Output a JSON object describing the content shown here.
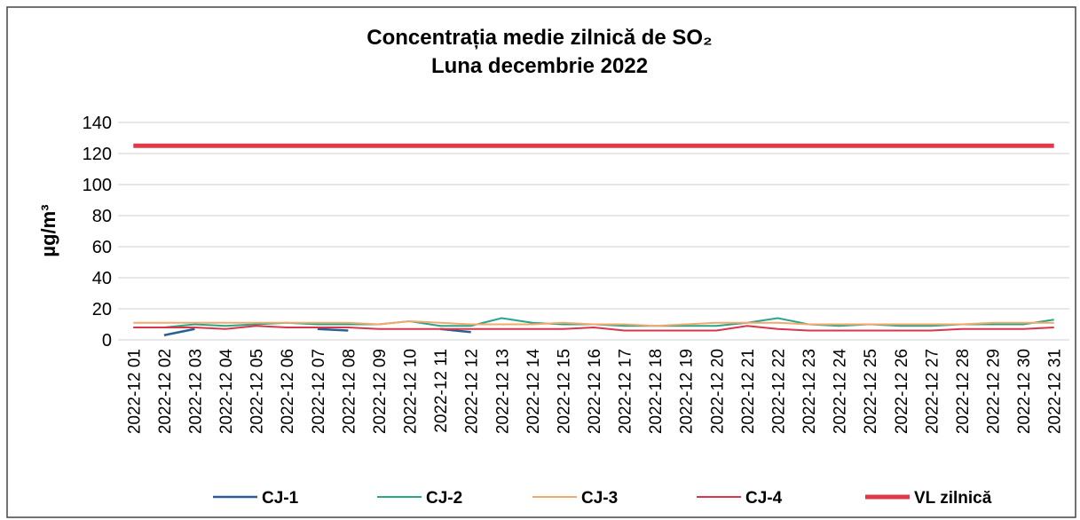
{
  "chart_data": {
    "type": "line",
    "title": "Concentrația medie zilnică de SO₂",
    "subtitle": "Luna decembrie 2022",
    "y_label": "µg/m³",
    "categories": [
      "2022-12 01",
      "2022-12 02",
      "2022-12 03",
      "2022-12 04",
      "2022-12 05",
      "2022-12 06",
      "2022-12 07",
      "2022-12 08",
      "2022-12 09",
      "2022-12 10",
      "2022-12 11",
      "2022-12 12",
      "2022-12 13",
      "2022-12 14",
      "2022-12 15",
      "2022-12 16",
      "2022-12 17",
      "2022-12 18",
      "2022-12 19",
      "2022-12 20",
      "2022-12 21",
      "2022-12 22",
      "2022-12 23",
      "2022-12 24",
      "2022-12 25",
      "2022-12 26",
      "2022-12 27",
      "2022-12 28",
      "2022-12 29",
      "2022-12 30",
      "2022-12 31"
    ],
    "series": [
      {
        "name": "CJ-1",
        "color": "#2a5f96",
        "width": 2.5,
        "values": [
          null,
          3,
          7,
          null,
          null,
          null,
          7,
          6,
          null,
          null,
          7,
          5,
          null,
          null,
          null,
          null,
          null,
          null,
          null,
          null,
          null,
          null,
          null,
          null,
          null,
          null,
          null,
          null,
          null,
          null,
          null
        ]
      },
      {
        "name": "CJ-2",
        "color": "#2aa58a",
        "width": 2,
        "values": [
          8,
          8,
          10,
          9,
          10,
          11,
          10,
          10,
          10,
          12,
          9,
          9,
          14,
          11,
          10,
          10,
          9,
          9,
          9,
          9,
          11,
          14,
          10,
          9,
          10,
          9,
          9,
          10,
          10,
          10,
          13
        ]
      },
      {
        "name": "CJ-3",
        "color": "#f2a96b",
        "width": 2,
        "values": [
          11,
          11,
          11,
          11,
          11,
          11,
          11,
          11,
          10,
          12,
          11,
          10,
          10,
          10,
          11,
          10,
          10,
          9,
          10,
          11,
          11,
          11,
          10,
          10,
          10,
          10,
          10,
          10,
          11,
          11,
          11
        ]
      },
      {
        "name": "CJ-4",
        "color": "#d9364c",
        "width": 2,
        "values": [
          8,
          8,
          8,
          7,
          9,
          8,
          8,
          8,
          7,
          7,
          7,
          7,
          7,
          7,
          7,
          8,
          6,
          6,
          6,
          6,
          9,
          7,
          6,
          6,
          6,
          6,
          6,
          7,
          7,
          7,
          8
        ]
      },
      {
        "name": "VL zilnică",
        "color": "#e03a4a",
        "width": 5,
        "values": [
          125,
          125,
          125,
          125,
          125,
          125,
          125,
          125,
          125,
          125,
          125,
          125,
          125,
          125,
          125,
          125,
          125,
          125,
          125,
          125,
          125,
          125,
          125,
          125,
          125,
          125,
          125,
          125,
          125,
          125,
          125
        ]
      }
    ],
    "ylim": [
      0,
      140
    ],
    "yticks": [
      0,
      20,
      40,
      60,
      80,
      100,
      120,
      140
    ],
    "grid": true
  }
}
